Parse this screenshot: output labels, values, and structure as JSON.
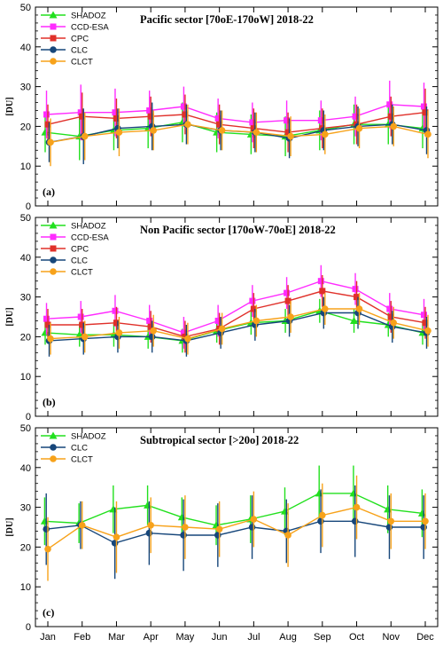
{
  "chart_data": [
    {
      "type": "line",
      "title": "Pacific sector [70oE-170oW] 2018-22",
      "panel_label": "(a)",
      "ylabel": "[DU]",
      "ylim": [
        0,
        50
      ],
      "yticks": [
        "0",
        "10",
        "20",
        "30",
        "40",
        "50"
      ],
      "categories": [
        "Jan",
        "Feb",
        "Mar",
        "Apr",
        "May",
        "Jun",
        "Jul",
        "Aug",
        "Sep",
        "Oct",
        "Nov",
        "Dec"
      ],
      "series": [
        {
          "name": "SHADOZ",
          "color": "#22e01e",
          "marker": "triangle",
          "values": [
            18.5,
            17.5,
            19.0,
            19.5,
            21.0,
            18.5,
            18.0,
            17.5,
            19.0,
            20.5,
            20.5,
            19.5
          ],
          "err": [
            5,
            6,
            5,
            5,
            5,
            5,
            5,
            5,
            5,
            5,
            5,
            5
          ]
        },
        {
          "name": "CCD-ESA",
          "color": "#ff2bff",
          "marker": "square",
          "values": [
            23.0,
            23.5,
            23.5,
            24.0,
            25.0,
            22.0,
            21.0,
            21.5,
            21.5,
            22.5,
            25.5,
            25.0
          ],
          "err": [
            6,
            7,
            6,
            5,
            5,
            5,
            5,
            5,
            5,
            5,
            6,
            6
          ]
        },
        {
          "name": "CPC",
          "color": "#e0302a",
          "marker": "square",
          "values": [
            20.5,
            22.5,
            22.0,
            22.5,
            23.0,
            20.5,
            19.5,
            18.5,
            19.5,
            20.5,
            22.5,
            23.5
          ],
          "err": [
            5,
            6,
            5,
            5,
            5,
            5,
            5,
            5,
            5,
            5,
            5,
            6
          ]
        },
        {
          "name": "CLC",
          "color": "#16467a",
          "marker": "circle",
          "values": [
            16.0,
            17.5,
            19.5,
            20.0,
            20.5,
            19.0,
            18.5,
            17.0,
            19.0,
            20.0,
            20.5,
            19.0
          ],
          "err": [
            5,
            7,
            5,
            6,
            5,
            5,
            5,
            5,
            5,
            5,
            5,
            6
          ]
        },
        {
          "name": "CLCT",
          "color": "#f7a21a",
          "marker": "circle",
          "values": [
            16.0,
            17.5,
            18.5,
            19.0,
            20.5,
            19.0,
            18.5,
            17.5,
            18.0,
            19.5,
            20.0,
            18.0
          ],
          "err": [
            6,
            6,
            6,
            5,
            5,
            5,
            5,
            5,
            5,
            5,
            5,
            6
          ]
        }
      ]
    },
    {
      "type": "line",
      "title": "Non Pacific sector [170oW-70oE] 2018-22",
      "panel_label": "(b)",
      "ylabel": "[DU]",
      "ylim": [
        0,
        50
      ],
      "yticks": [
        "0",
        "10",
        "20",
        "30",
        "40",
        "50"
      ],
      "categories": [
        "Jan",
        "Feb",
        "Mar",
        "Apr",
        "May",
        "Jun",
        "Jul",
        "Aug",
        "Sep",
        "Oct",
        "Nov",
        "Dec"
      ],
      "series": [
        {
          "name": "SHADOZ",
          "color": "#22e01e",
          "marker": "triangle",
          "values": [
            21.0,
            20.5,
            20.5,
            20.0,
            19.0,
            21.5,
            23.5,
            24.0,
            26.5,
            24.0,
            23.0,
            21.0
          ],
          "err": [
            3,
            3,
            3,
            3,
            3,
            3,
            3,
            3,
            3,
            3,
            3,
            3
          ]
        },
        {
          "name": "CCD-ESA",
          "color": "#ff2bff",
          "marker": "square",
          "values": [
            24.5,
            25.0,
            26.5,
            24.0,
            21.0,
            24.0,
            29.0,
            31.0,
            34.0,
            32.0,
            27.0,
            25.5
          ],
          "err": [
            4,
            4,
            4,
            4,
            4,
            4,
            4,
            4,
            4,
            4,
            4,
            4
          ]
        },
        {
          "name": "CPC",
          "color": "#e0302a",
          "marker": "square",
          "values": [
            23.0,
            23.0,
            23.5,
            22.5,
            20.0,
            22.0,
            27.0,
            29.0,
            31.5,
            30.0,
            25.0,
            23.5
          ],
          "err": [
            4,
            4,
            4,
            4,
            4,
            4,
            4,
            4,
            4,
            4,
            4,
            4
          ]
        },
        {
          "name": "CLC",
          "color": "#16467a",
          "marker": "circle",
          "values": [
            19.0,
            19.5,
            20.0,
            20.0,
            19.0,
            21.0,
            23.0,
            24.0,
            26.0,
            26.0,
            22.5,
            21.0
          ],
          "err": [
            4,
            4,
            4,
            4,
            4,
            4,
            4,
            4,
            4,
            4,
            4,
            4
          ]
        },
        {
          "name": "CLCT",
          "color": "#f7a21a",
          "marker": "circle",
          "values": [
            19.5,
            20.0,
            21.0,
            21.5,
            19.5,
            22.0,
            24.0,
            25.0,
            27.0,
            27.0,
            23.5,
            21.5
          ],
          "err": [
            4,
            4,
            4,
            4,
            4,
            4,
            4,
            4,
            4,
            4,
            4,
            4
          ]
        }
      ]
    },
    {
      "type": "line",
      "title": "Subtropical sector [>20o] 2018-22",
      "panel_label": "(c)",
      "ylabel": "[DU]",
      "ylim": [
        0,
        50
      ],
      "yticks": [
        "0",
        "10",
        "20",
        "30",
        "40",
        "50"
      ],
      "categories": [
        "Jan",
        "Feb",
        "Mar",
        "Apr",
        "May",
        "Jun",
        "Jul",
        "Aug",
        "Sep",
        "Oct",
        "Nov",
        "Dec"
      ],
      "series": [
        {
          "name": "SHADOZ",
          "color": "#22e01e",
          "marker": "triangle",
          "values": [
            26.5,
            26.0,
            29.5,
            30.5,
            27.5,
            25.5,
            27.0,
            29.0,
            33.5,
            33.5,
            29.5,
            28.5
          ],
          "err": [
            6,
            5,
            6,
            5,
            5,
            5,
            6,
            6,
            7,
            7,
            6,
            6
          ]
        },
        {
          "name": "CLC",
          "color": "#16467a",
          "marker": "circle",
          "values": [
            24.5,
            25.5,
            21.0,
            23.5,
            23.0,
            23.0,
            25.0,
            24.0,
            26.5,
            26.5,
            25.0,
            25.0
          ],
          "err": [
            9,
            6,
            9,
            8,
            9,
            8,
            8,
            8,
            8,
            9,
            8,
            8
          ]
        },
        {
          "name": "CLCT",
          "color": "#f7a21a",
          "marker": "circle",
          "values": [
            19.5,
            25.5,
            22.5,
            25.5,
            25.0,
            24.5,
            27.0,
            23.0,
            28.0,
            30.0,
            26.5,
            26.5
          ],
          "err": [
            8,
            6,
            9,
            7,
            8,
            7,
            7,
            8,
            8,
            8,
            7,
            7
          ]
        }
      ]
    }
  ]
}
